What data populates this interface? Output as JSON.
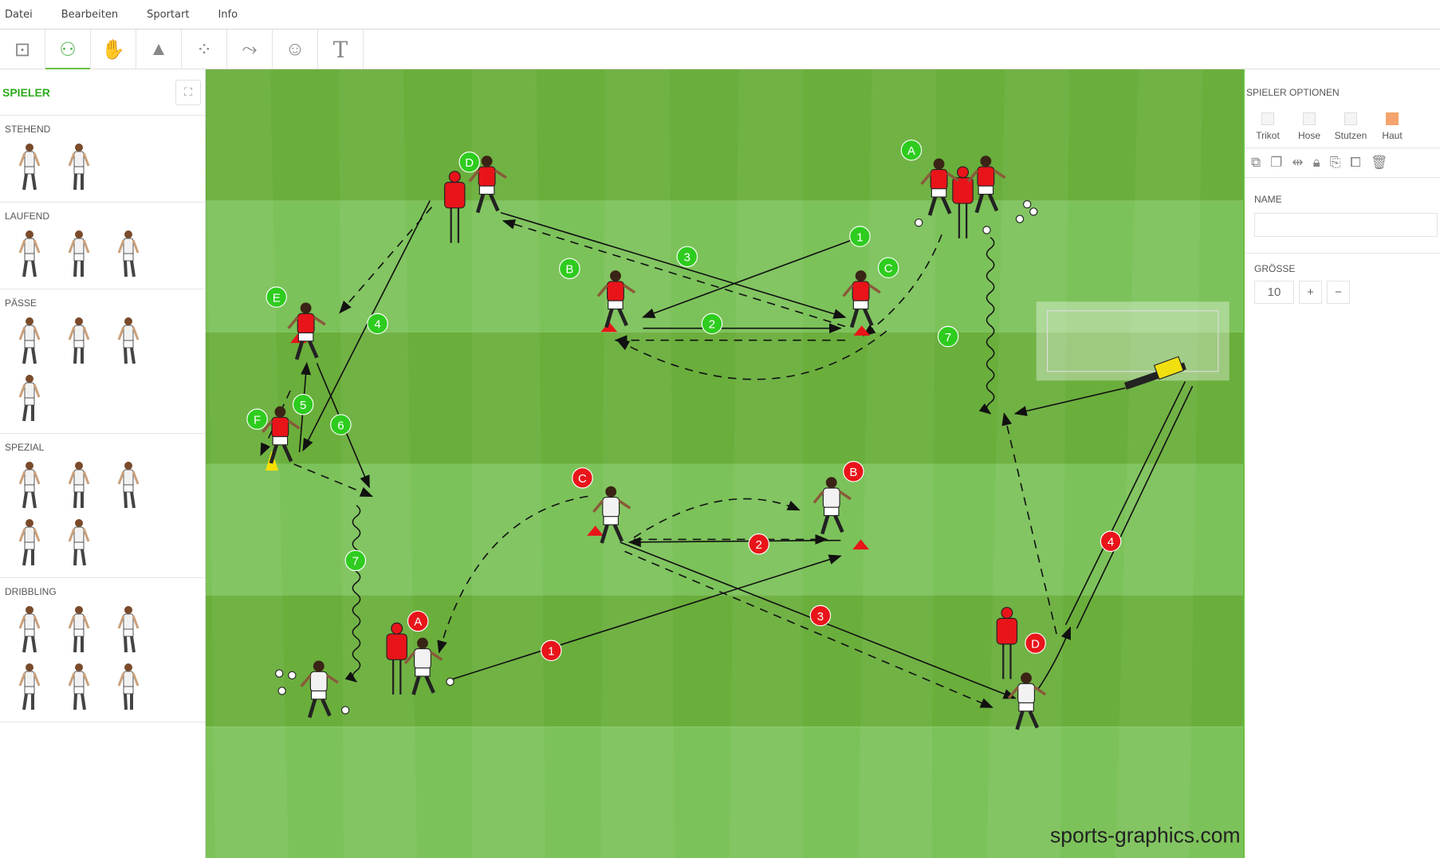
{
  "menu": [
    "Datei",
    "Bearbeiten",
    "Sportart",
    "Info"
  ],
  "toolbar": [
    {
      "icon": "pitch-icon"
    },
    {
      "icon": "player-icon",
      "active": true
    },
    {
      "icon": "goalkeeper-glove-icon"
    },
    {
      "icon": "cone-icon"
    },
    {
      "icon": "tactics-icon"
    },
    {
      "icon": "lines-icon"
    },
    {
      "icon": "referee-icon"
    },
    {
      "icon": "text-icon"
    }
  ],
  "left": {
    "title": "SPIELER",
    "categories": [
      {
        "name": "STEHEND",
        "count": 2
      },
      {
        "name": "LAUFEND",
        "count": 3
      },
      {
        "name": "PÄSSE",
        "count": 4
      },
      {
        "name": "SPEZIAL",
        "count": 5
      },
      {
        "name": "DRIBBLING",
        "count": 6
      }
    ]
  },
  "right": {
    "title": "SPIELER OPTIONEN",
    "colors": [
      {
        "label": "Trikot",
        "color": "#f5f5f5"
      },
      {
        "label": "Hose",
        "color": "#f5f5f5"
      },
      {
        "label": "Stutzen",
        "color": "#f5f5f5"
      },
      {
        "label": "Haut",
        "color": "#f4a46c"
      }
    ],
    "actions": [
      "bring-to-front-icon",
      "send-to-back-icon",
      "mirror-icon",
      "lock-icon",
      "copy-icon",
      "duplicate-icon",
      "trash-icon"
    ],
    "name_label": "NAME",
    "name_value": "",
    "size_label": "GRÖSSE",
    "size_value": "10",
    "plus": "+",
    "minus": "−"
  },
  "field": {
    "grass": [
      "#6aae3c",
      "#7cc25a"
    ],
    "watermark": "sports-graphics.com",
    "green_labels": [
      "D",
      "A",
      "1",
      "3",
      "B",
      "C",
      "E",
      "4",
      "2",
      "7",
      "5",
      "F",
      "6",
      "7"
    ],
    "red_labels": [
      "B",
      "C",
      "2",
      "4",
      "3",
      "A",
      "D",
      "1"
    ],
    "label_colors": {
      "green": "#2ecc1e",
      "red": "#e8141a"
    }
  }
}
